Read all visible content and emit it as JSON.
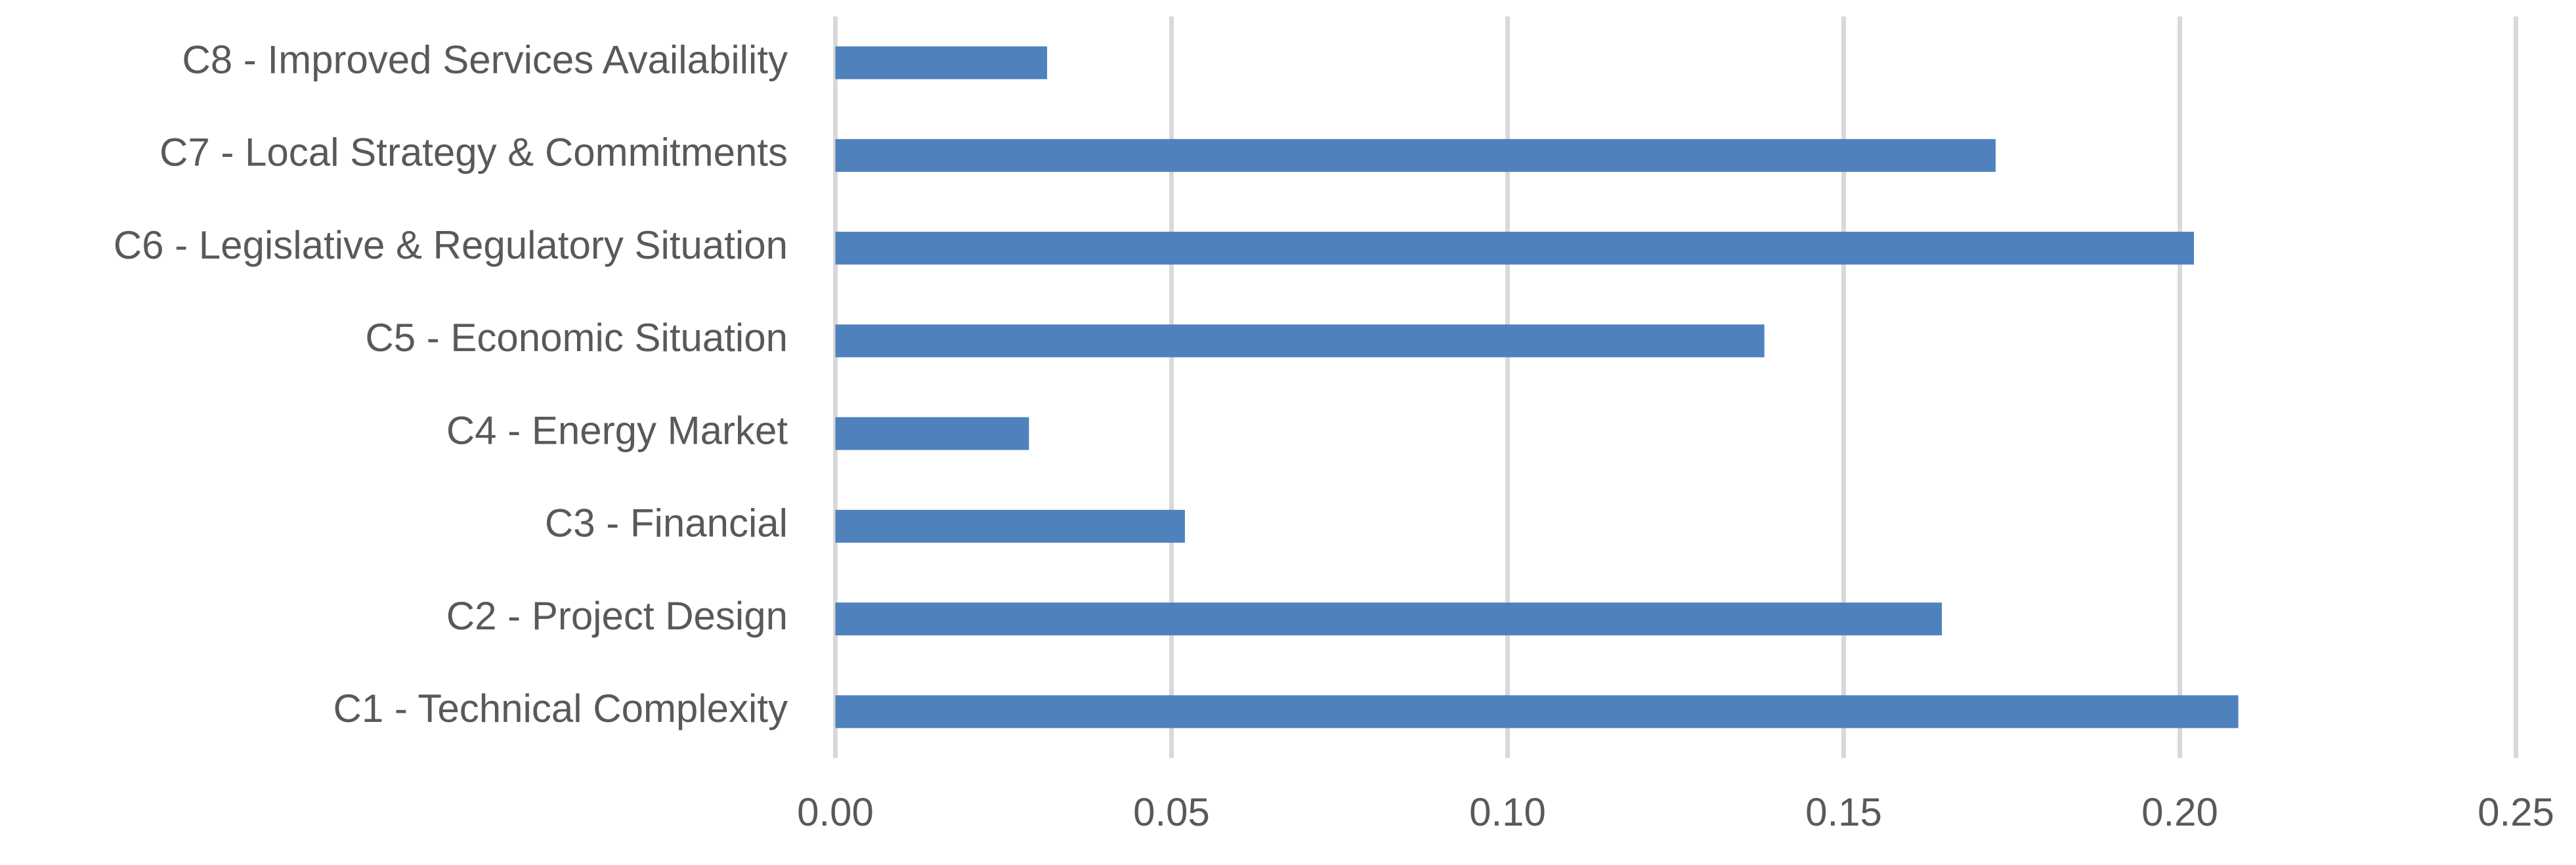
{
  "chart_data": {
    "type": "bar",
    "orientation": "horizontal",
    "categories": [
      "C1 - Technical Complexity",
      "C2 - Project Design",
      "C3 - Financial",
      "C4 - Energy Market",
      "C5 - Economic Situation",
      "C6 - Legislative & Regulatory Situation",
      "C7 - Local Strategy & Commitments",
      "C8 - Improved Services Availability"
    ],
    "values": [
      0.2087,
      0.1646,
      0.052,
      0.0288,
      0.1382,
      0.2021,
      0.1726,
      0.0315
    ],
    "color": "#4f81bd",
    "xlim": [
      0,
      0.25
    ],
    "xticks": [
      {
        "value": 0,
        "label": "0.00"
      },
      {
        "value": 0.05,
        "label": "0.05"
      },
      {
        "value": 0.1,
        "label": "0.10"
      },
      {
        "value": 0.15,
        "label": "0.15"
      },
      {
        "value": 0.2,
        "label": "0.20"
      },
      {
        "value": 0.25,
        "label": "0.25"
      }
    ],
    "grid": true
  }
}
